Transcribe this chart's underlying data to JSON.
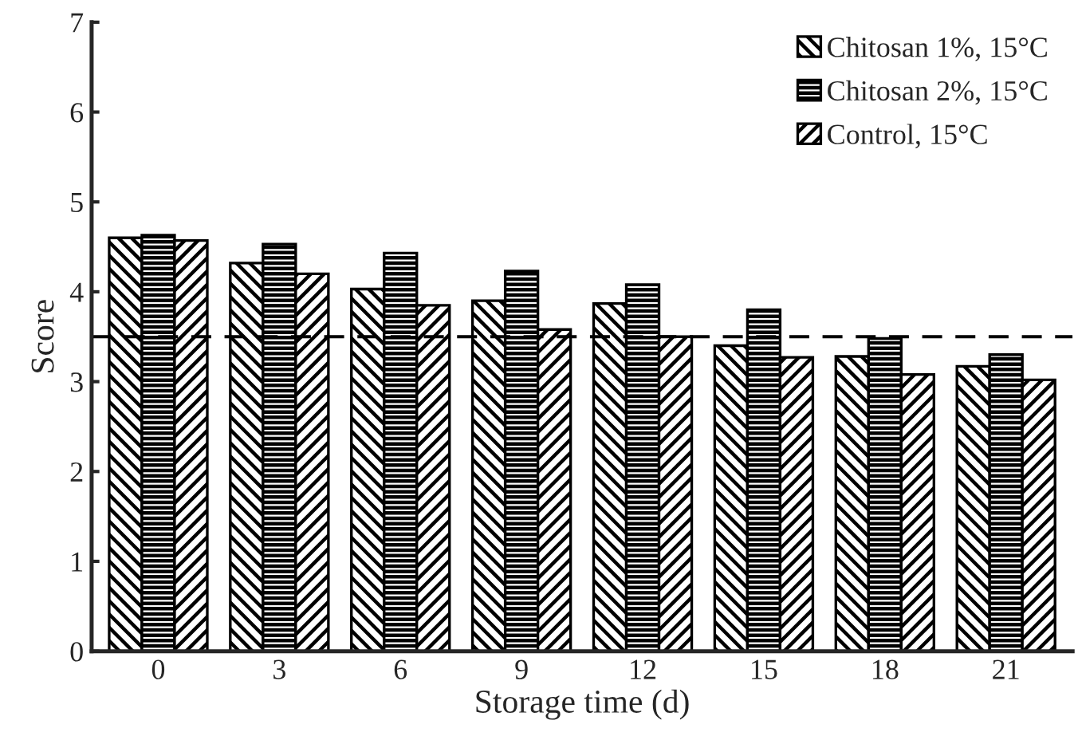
{
  "chart_data": {
    "type": "bar",
    "xlabel": "Storage time (d)",
    "ylabel": "Score",
    "categories": [
      "0",
      "3",
      "6",
      "9",
      "12",
      "15",
      "18",
      "21"
    ],
    "series": [
      {
        "name": "Chitosan 1%, 15°C",
        "color": "#000000",
        "values": [
          4.6,
          4.32,
          4.03,
          3.9,
          3.87,
          3.4,
          3.28,
          3.17
        ]
      },
      {
        "name": "Chitosan 2%, 15°C",
        "color": "#000000",
        "values": [
          4.63,
          4.53,
          4.43,
          4.23,
          4.08,
          3.8,
          3.48,
          3.3
        ]
      },
      {
        "name": "Control, 15°C",
        "color": "#000000",
        "values": [
          4.57,
          4.2,
          3.85,
          3.58,
          3.5,
          3.27,
          3.08,
          3.02
        ]
      }
    ],
    "ylim": [
      0,
      7
    ],
    "yticks": [
      0,
      1,
      2,
      3,
      4,
      5,
      6,
      7
    ],
    "ref_lines": [
      {
        "axis": "y",
        "value": 3.5,
        "color": "#000000",
        "line_style": "dashed"
      }
    ],
    "legend": "top right",
    "grid": false
  }
}
